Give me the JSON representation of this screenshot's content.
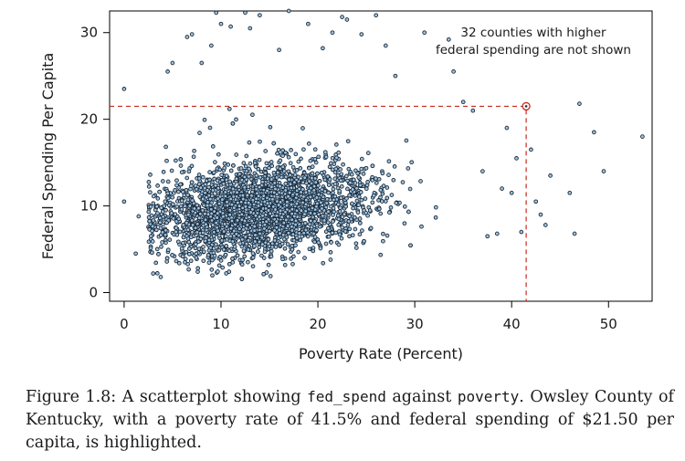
{
  "chart_data": {
    "type": "scatter",
    "xlabel": "Poverty Rate (Percent)",
    "ylabel": "Federal Spending Per Capita",
    "xlim": [
      -1.5,
      54.5
    ],
    "ylim": [
      -1,
      32.5
    ],
    "xticks": [
      "0",
      "10",
      "20",
      "30",
      "40",
      "50"
    ],
    "xtick_values": [
      0,
      10,
      20,
      30,
      40,
      50
    ],
    "yticks": [
      "0",
      "10",
      "20",
      "30"
    ],
    "ytick_values": [
      0,
      10,
      20,
      30
    ],
    "annotation_line1": "32 counties with higher",
    "annotation_line2": "federal spending are not shown",
    "highlight": {
      "x": 41.5,
      "y": 21.5,
      "name": "Owsley County of Kentucky"
    },
    "generated_cloud": {
      "n": 3000,
      "seed": 7,
      "x_center": 14,
      "x_spread": 5.5,
      "y_base": 7,
      "y_slope": 0.12,
      "y_spread": 2.4
    },
    "outliers": [
      [
        0,
        23.5
      ],
      [
        0,
        10.5
      ],
      [
        1.2,
        4.5
      ],
      [
        1.5,
        8.8
      ],
      [
        3,
        2.2
      ],
      [
        4.5,
        25.5
      ],
      [
        5,
        26.5
      ],
      [
        6.5,
        29.5
      ],
      [
        7,
        29.8
      ],
      [
        8,
        26.5
      ],
      [
        9,
        28.5
      ],
      [
        9.5,
        32.3
      ],
      [
        10,
        31
      ],
      [
        11,
        30.7
      ],
      [
        12.5,
        32.3
      ],
      [
        13,
        30.5
      ],
      [
        14,
        32
      ],
      [
        16,
        28
      ],
      [
        17,
        32.5
      ],
      [
        19,
        31
      ],
      [
        20.5,
        28.2
      ],
      [
        21.5,
        30
      ],
      [
        22.5,
        31.8
      ],
      [
        23,
        31.5
      ],
      [
        24.5,
        29.8
      ],
      [
        26,
        32
      ],
      [
        27,
        28.5
      ],
      [
        28,
        25
      ],
      [
        31,
        30
      ],
      [
        33.5,
        29.2
      ],
      [
        34,
        25.5
      ],
      [
        35,
        22
      ],
      [
        36,
        21
      ],
      [
        37,
        14
      ],
      [
        37.5,
        6.5
      ],
      [
        38.5,
        6.8
      ],
      [
        39,
        12
      ],
      [
        39.5,
        19
      ],
      [
        40,
        11.5
      ],
      [
        40.5,
        15.5
      ],
      [
        41,
        7
      ],
      [
        42,
        16.5
      ],
      [
        42.5,
        10.5
      ],
      [
        43,
        9
      ],
      [
        43.5,
        7.8
      ],
      [
        44,
        13.5
      ],
      [
        46,
        11.5
      ],
      [
        46.5,
        6.8
      ],
      [
        47,
        21.8
      ],
      [
        48.5,
        18.5
      ],
      [
        49.5,
        14
      ],
      [
        53.5,
        18
      ]
    ]
  },
  "caption": {
    "prefix": "Figure 1.8: A scatterplot showing",
    "code1": "fed_spend",
    "middle": "against",
    "code2": "poverty",
    "suffix": ". Owsley County of Kentucky, with a poverty rate of 41.5% and federal spending of $21.50 per capita, is highlighted."
  },
  "colors": {
    "point_fill": "#9ec4e0",
    "point_stroke": "#1c2a3a",
    "highlight": "#c8291b",
    "axis": "#000000"
  }
}
